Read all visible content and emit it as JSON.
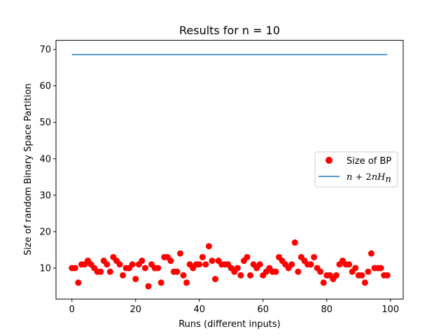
{
  "chart_data": {
    "type": "scatter",
    "title": "Results for n = 10",
    "xlabel": "Runs (different inputs)",
    "ylabel": "Size of random Binary Space Partition",
    "xlim": [
      -5,
      104
    ],
    "ylim": [
      1.5,
      72.5
    ],
    "xticks": [
      0,
      20,
      40,
      60,
      80,
      100
    ],
    "yticks": [
      10,
      20,
      30,
      40,
      50,
      60,
      70
    ],
    "grid": false,
    "legend_position": "center-right",
    "series": [
      {
        "name": "Size of BP",
        "kind": "scatter",
        "color": "#ff0000",
        "x": [
          0,
          1,
          2,
          3,
          4,
          5,
          6,
          7,
          8,
          9,
          10,
          11,
          12,
          13,
          14,
          15,
          16,
          17,
          18,
          19,
          20,
          21,
          22,
          23,
          24,
          25,
          26,
          27,
          28,
          29,
          30,
          31,
          32,
          33,
          34,
          35,
          36,
          37,
          38,
          39,
          40,
          41,
          42,
          43,
          44,
          45,
          46,
          47,
          48,
          49,
          50,
          51,
          52,
          53,
          54,
          55,
          56,
          57,
          58,
          59,
          60,
          61,
          62,
          63,
          64,
          65,
          66,
          67,
          68,
          69,
          70,
          71,
          72,
          73,
          74,
          75,
          76,
          77,
          78,
          79,
          80,
          81,
          82,
          83,
          84,
          85,
          86,
          87,
          88,
          89,
          90,
          91,
          92,
          93,
          94,
          95,
          96,
          97,
          98,
          99
        ],
        "y": [
          10,
          10,
          6,
          11,
          11,
          12,
          11,
          10,
          9,
          9,
          12,
          11,
          9,
          13,
          12,
          11,
          8,
          10,
          10,
          11,
          7,
          11,
          12,
          10,
          5,
          11,
          10,
          10,
          6,
          13,
          13,
          12,
          9,
          9,
          14,
          8,
          6,
          11,
          10,
          11,
          11,
          13,
          11,
          16,
          12,
          7,
          12,
          11,
          11,
          11,
          10,
          9,
          10,
          8,
          12,
          13,
          8,
          11,
          10,
          11,
          8,
          9,
          10,
          9,
          9,
          13,
          12,
          11,
          10,
          11,
          17,
          9,
          13,
          12,
          11,
          11,
          13,
          10,
          9,
          6,
          8,
          8,
          7,
          8,
          11,
          12,
          11,
          11,
          9,
          10,
          8,
          8,
          6,
          9,
          14,
          10,
          10,
          10,
          8,
          8
        ]
      },
      {
        "name": "n + 2nH_n",
        "kind": "line",
        "color": "#1f77b4",
        "x": [
          0,
          99
        ],
        "y": [
          68.58,
          68.58
        ]
      }
    ]
  }
}
